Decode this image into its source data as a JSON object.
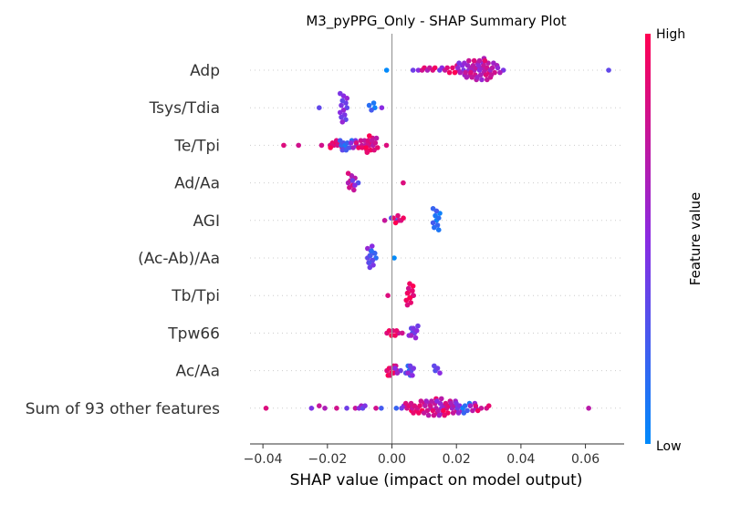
{
  "chart_data": {
    "type": "scatter",
    "title": "M3_pyPPG_Only - SHAP Summary Plot",
    "xlabel": "SHAP value (impact on model output)",
    "xlim": [
      -0.044,
      0.072
    ],
    "x_ticks": [
      -0.04,
      -0.02,
      0.0,
      0.02,
      0.04,
      0.06
    ],
    "x_tick_labels": [
      "−0.04",
      "−0.02",
      "0.00",
      "0.02",
      "0.04",
      "0.06"
    ],
    "features": [
      "Adp",
      "Tsys/Tdia",
      "Te/Tpi",
      "Ad/Aa",
      "AGI",
      "(Ac-Ab)/Aa",
      "Tb/Tpi",
      "Tpw66",
      "Ac/Aa",
      "Sum of 93 other features"
    ],
    "colorbar": {
      "label": "Feature value",
      "high_label": "High",
      "low_label": "Low",
      "low_color": "#008afb",
      "high_color": "#ff0052"
    },
    "series": [
      {
        "feature": "Adp",
        "clusters": [
          {
            "x": -0.0006,
            "fv": 0.05,
            "n": 1
          },
          {
            "x": 0.0055,
            "fv": 0.5,
            "n": 1
          },
          {
            "x": 0.0075,
            "fv": 0.6,
            "n": 1
          },
          {
            "x": 0.009,
            "fv": 0.9,
            "n": 2
          },
          {
            "x": 0.011,
            "fv": 0.75,
            "n": 2
          },
          {
            "x": 0.013,
            "fv": 0.95,
            "n": 2
          },
          {
            "x": 0.0155,
            "fv": 0.5,
            "n": 2
          },
          {
            "x": 0.0175,
            "fv": 0.85,
            "n": 3
          },
          {
            "x": 0.0195,
            "fv": 0.9,
            "n": 4
          },
          {
            "x": 0.0215,
            "fv": 0.55,
            "n": 6
          },
          {
            "x": 0.0235,
            "fv": 0.65,
            "n": 8
          },
          {
            "x": 0.0255,
            "fv": 0.75,
            "n": 9
          },
          {
            "x": 0.0275,
            "fv": 0.6,
            "n": 10
          },
          {
            "x": 0.0295,
            "fv": 0.8,
            "n": 9
          },
          {
            "x": 0.0315,
            "fv": 0.7,
            "n": 6
          },
          {
            "x": 0.0335,
            "fv": 0.55,
            "n": 3
          },
          {
            "x": 0.0665,
            "fv": 0.45,
            "n": 1
          }
        ]
      },
      {
        "feature": "Tsys/Tdia",
        "clusters": [
          {
            "x": -0.0215,
            "fv": 0.45,
            "n": 1
          },
          {
            "x": -0.015,
            "fv": 0.45,
            "n": 13
          },
          {
            "x": -0.006,
            "fv": 0.15,
            "n": 4
          },
          {
            "x": -0.0035,
            "fv": 0.6,
            "n": 1
          }
        ]
      },
      {
        "feature": "Te/Tpi",
        "clusters": [
          {
            "x": -0.0325,
            "fv": 0.95,
            "n": 1
          },
          {
            "x": -0.03,
            "fv": 0.9,
            "n": 1
          },
          {
            "x": -0.0225,
            "fv": 0.9,
            "n": 1
          },
          {
            "x": -0.0195,
            "fv": 0.9,
            "n": 2
          },
          {
            "x": -0.018,
            "fv": 0.95,
            "n": 3
          },
          {
            "x": -0.0165,
            "fv": 0.9,
            "n": 4
          },
          {
            "x": -0.015,
            "fv": 0.3,
            "n": 5
          },
          {
            "x": -0.0135,
            "fv": 0.2,
            "n": 5
          },
          {
            "x": -0.012,
            "fv": 0.5,
            "n": 4
          },
          {
            "x": -0.01,
            "fv": 0.85,
            "n": 4
          },
          {
            "x": -0.0085,
            "fv": 0.8,
            "n": 5
          },
          {
            "x": -0.007,
            "fv": 0.9,
            "n": 8
          },
          {
            "x": -0.0055,
            "fv": 0.8,
            "n": 6
          },
          {
            "x": -0.001,
            "fv": 0.95,
            "n": 1
          }
        ]
      },
      {
        "feature": "Ad/Aa",
        "clusters": [
          {
            "x": -0.0125,
            "fv": 0.75,
            "n": 8
          },
          {
            "x": -0.0115,
            "fv": 0.4,
            "n": 3
          },
          {
            "x": 0.0028,
            "fv": 0.95,
            "n": 1
          }
        ]
      },
      {
        "feature": "AGI",
        "clusters": [
          {
            "x": -0.0012,
            "fv": 0.85,
            "n": 1
          },
          {
            "x": 0.0005,
            "fv": 0.3,
            "n": 2
          },
          {
            "x": 0.0015,
            "fv": 0.9,
            "n": 4
          },
          {
            "x": 0.0025,
            "fv": 0.95,
            "n": 2
          },
          {
            "x": 0.0138,
            "fv": 0.15,
            "n": 10
          }
        ]
      },
      {
        "feature": "(Ac-Ab)/Aa",
        "clusters": [
          {
            "x": -0.0065,
            "fv": 0.45,
            "n": 10
          },
          {
            "x": -0.006,
            "fv": 0.25,
            "n": 6
          },
          {
            "x": 0.0,
            "fv": 0.1,
            "n": 1
          }
        ]
      },
      {
        "feature": "Tb/Tpi",
        "clusters": [
          {
            "x": -0.0002,
            "fv": 0.95,
            "n": 1
          },
          {
            "x": 0.0055,
            "fv": 0.9,
            "n": 10
          },
          {
            "x": 0.006,
            "fv": 0.95,
            "n": 4
          }
        ]
      },
      {
        "feature": "Tpw66",
        "clusters": [
          {
            "x": -0.0005,
            "fv": 0.95,
            "n": 3
          },
          {
            "x": 0.001,
            "fv": 0.85,
            "n": 3
          },
          {
            "x": 0.0025,
            "fv": 0.9,
            "n": 2
          },
          {
            "x": 0.006,
            "fv": 0.4,
            "n": 4
          },
          {
            "x": 0.007,
            "fv": 0.5,
            "n": 6
          }
        ]
      },
      {
        "feature": "Ac/Aa",
        "clusters": [
          {
            "x": -0.0005,
            "fv": 0.95,
            "n": 5
          },
          {
            "x": 0.0005,
            "fv": 0.85,
            "n": 5
          },
          {
            "x": 0.002,
            "fv": 0.5,
            "n": 3
          },
          {
            "x": 0.005,
            "fv": 0.2,
            "n": 5
          },
          {
            "x": 0.006,
            "fv": 0.45,
            "n": 5
          },
          {
            "x": 0.0138,
            "fv": 0.4,
            "n": 4
          }
        ]
      },
      {
        "feature": "Sum of 93 other features",
        "clusters": [
          {
            "x": -0.038,
            "fv": 0.95,
            "n": 1
          },
          {
            "x": -0.026,
            "fv": 0.55,
            "n": 1
          },
          {
            "x": -0.0215,
            "fv": 0.75,
            "n": 2
          },
          {
            "x": -0.0175,
            "fv": 0.9,
            "n": 1
          },
          {
            "x": -0.014,
            "fv": 0.5,
            "n": 1
          },
          {
            "x": -0.011,
            "fv": 0.85,
            "n": 1
          },
          {
            "x": -0.0095,
            "fv": 0.6,
            "n": 2
          },
          {
            "x": -0.008,
            "fv": 0.45,
            "n": 2
          },
          {
            "x": -0.006,
            "fv": 0.9,
            "n": 1
          },
          {
            "x": -0.004,
            "fv": 0.35,
            "n": 1
          },
          {
            "x": 0.001,
            "fv": 0.3,
            "n": 1
          },
          {
            "x": 0.003,
            "fv": 0.5,
            "n": 2
          },
          {
            "x": 0.005,
            "fv": 0.9,
            "n": 4
          },
          {
            "x": 0.007,
            "fv": 0.85,
            "n": 5
          },
          {
            "x": 0.009,
            "fv": 0.9,
            "n": 6
          },
          {
            "x": 0.011,
            "fv": 0.7,
            "n": 7
          },
          {
            "x": 0.013,
            "fv": 0.8,
            "n": 8
          },
          {
            "x": 0.015,
            "fv": 0.6,
            "n": 8
          },
          {
            "x": 0.017,
            "fv": 0.9,
            "n": 7
          },
          {
            "x": 0.019,
            "fv": 0.7,
            "n": 6
          },
          {
            "x": 0.021,
            "fv": 0.5,
            "n": 5
          },
          {
            "x": 0.023,
            "fv": 0.15,
            "n": 5
          },
          {
            "x": 0.025,
            "fv": 0.6,
            "n": 4
          },
          {
            "x": 0.027,
            "fv": 0.85,
            "n": 3
          },
          {
            "x": 0.029,
            "fv": 0.9,
            "n": 2
          },
          {
            "x": 0.061,
            "fv": 0.8,
            "n": 1
          }
        ]
      }
    ]
  }
}
